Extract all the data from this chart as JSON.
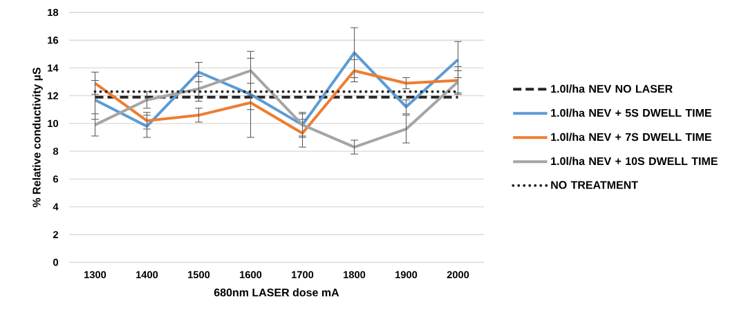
{
  "chart_data": {
    "type": "line",
    "xlabel": "680nm LASER dose mA",
    "ylabel": "% Relative conductivity µS",
    "categories": [
      "1300",
      "1400",
      "1500",
      "1600",
      "1700",
      "1800",
      "1900",
      "2000"
    ],
    "series": [
      {
        "name": "1.0l/ha NEV NO LASER",
        "color": "#262626",
        "line_style": "dashed",
        "values": [
          11.9,
          11.9,
          11.9,
          11.9,
          11.9,
          11.9,
          11.9,
          11.9
        ]
      },
      {
        "name": "1.0l/ha NEV + 5S DWELL TIME",
        "color": "#5b9bd5",
        "line_style": "solid",
        "values": [
          11.7,
          9.8,
          13.7,
          12.1,
          9.9,
          15.1,
          11.2,
          14.6
        ],
        "errors": [
          1.4,
          0.8,
          0.7,
          3.1,
          0.9,
          1.8,
          0.5,
          1.3
        ]
      },
      {
        "name": "1.0l/ha NEV + 7S DWELL TIME",
        "color": "#ed7d31",
        "line_style": "solid",
        "values": [
          12.9,
          10.2,
          10.6,
          11.5,
          9.3,
          13.8,
          12.9,
          13.1
        ],
        "errors": [
          0.8,
          0.6,
          0.5,
          0.5,
          1.0,
          0.8,
          0.4,
          1.0
        ]
      },
      {
        "name": "1.0l/ha NEV + 10S DWELL TIME",
        "color": "#a5a5a5",
        "line_style": "solid",
        "values": [
          9.9,
          11.7,
          12.5,
          13.8,
          9.9,
          8.3,
          9.6,
          13.0
        ],
        "errors": [
          0.8,
          0.6,
          0.9,
          0.9,
          0.8,
          0.5,
          1.0,
          0.8
        ]
      },
      {
        "name": "NO TREATMENT",
        "color": "#262626",
        "line_style": "dotted",
        "values": [
          12.3,
          12.3,
          12.3,
          12.3,
          12.3,
          12.3,
          12.3,
          12.3
        ]
      }
    ],
    "ylim": [
      0,
      18
    ],
    "yticks": [
      0,
      2,
      4,
      6,
      8,
      10,
      12,
      14,
      16,
      18
    ],
    "grid": "y",
    "legend": "right"
  }
}
